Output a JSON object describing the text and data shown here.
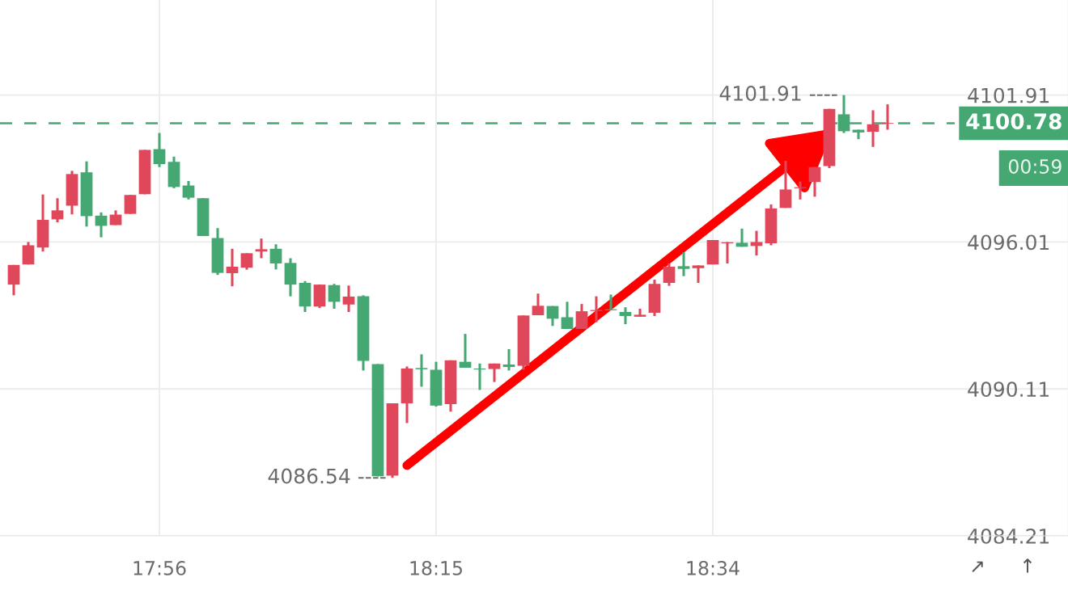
{
  "chart_data": {
    "type": "candlestick",
    "categories": [
      null,
      null,
      null,
      null,
      null,
      null,
      null,
      null,
      null,
      null,
      "17:56",
      null,
      null,
      null,
      null,
      null,
      null,
      null,
      null,
      null,
      null,
      null,
      null,
      null,
      null,
      null,
      null,
      null,
      null,
      "18:15",
      null,
      null,
      null,
      null,
      null,
      null,
      null,
      null,
      null,
      null,
      null,
      null,
      null,
      null,
      null,
      null,
      null,
      null,
      "18:34",
      null,
      null,
      null,
      null,
      null,
      null,
      null,
      null,
      null,
      null,
      null,
      null
    ],
    "ohlc": [
      [
        4094.3,
        4095.09,
        4093.87,
        4095.09
      ],
      [
        4095.11,
        4096.01,
        4095.11,
        4095.88
      ],
      [
        4095.79,
        4097.92,
        4095.63,
        4096.9
      ],
      [
        4096.92,
        4097.77,
        4096.8,
        4097.28
      ],
      [
        4097.47,
        4098.87,
        4097.12,
        4098.74
      ],
      [
        4098.81,
        4099.25,
        4096.63,
        4097.05
      ],
      [
        4097.07,
        4097.2,
        4096.2,
        4096.66
      ],
      [
        4096.69,
        4097.28,
        4096.69,
        4097.11
      ],
      [
        4097.14,
        4097.9,
        4097.14,
        4097.9
      ],
      [
        4097.93,
        4099.71,
        4097.93,
        4099.71
      ],
      [
        4099.74,
        4100.39,
        4099.02,
        4099.14
      ],
      [
        4099.23,
        4099.44,
        4098.17,
        4098.22
      ],
      [
        4098.28,
        4098.46,
        4097.72,
        4097.79
      ],
      [
        4097.77,
        4097.77,
        4096.25,
        4096.25
      ],
      [
        4096.17,
        4096.57,
        4094.69,
        4094.77
      ],
      [
        4094.76,
        4095.74,
        4094.23,
        4095.02
      ],
      [
        4094.98,
        4095.56,
        4094.9,
        4095.56
      ],
      [
        4095.63,
        4096.15,
        4095.36,
        4095.72
      ],
      [
        4095.74,
        4095.92,
        4094.91,
        4095.15
      ],
      [
        4095.17,
        4095.36,
        4093.83,
        4094.3
      ],
      [
        4094.37,
        4094.44,
        4093.2,
        4093.42
      ],
      [
        4093.42,
        4094.3,
        4093.36,
        4094.3
      ],
      [
        4094.28,
        4094.33,
        4093.33,
        4093.61
      ],
      [
        4093.5,
        4094.26,
        4093.2,
        4093.82
      ],
      [
        4093.83,
        4093.87,
        4090.85,
        4091.24
      ],
      [
        4091.11,
        4091.11,
        4086.6,
        4086.6
      ],
      [
        4086.63,
        4089.53,
        4086.54,
        4089.53
      ],
      [
        4089.53,
        4091.01,
        4088.74,
        4090.93
      ],
      [
        4090.95,
        4091.5,
        4090.2,
        4090.9
      ],
      [
        4090.88,
        4091.2,
        4089.4,
        4089.44
      ],
      [
        4089.5,
        4091.26,
        4089.2,
        4091.26
      ],
      [
        4091.2,
        4092.32,
        4090.96,
        4090.96
      ],
      [
        4090.93,
        4091.13,
        4090.07,
        4090.89
      ],
      [
        4090.91,
        4091.13,
        4090.39,
        4091.13
      ],
      [
        4091.09,
        4091.71,
        4090.85,
        4090.99
      ],
      [
        4091.04,
        4093.06,
        4090.88,
        4093.06
      ],
      [
        4093.07,
        4093.94,
        4093.07,
        4093.45
      ],
      [
        4093.44,
        4093.44,
        4092.64,
        4092.93
      ],
      [
        4092.99,
        4093.61,
        4092.52,
        4092.52
      ],
      [
        4092.52,
        4093.52,
        4092.52,
        4093.23
      ],
      [
        4093.24,
        4093.83,
        4092.79,
        4093.28
      ],
      [
        4093.31,
        4093.9,
        4093.27,
        4093.27
      ],
      [
        4093.2,
        4093.39,
        4092.71,
        4093.04
      ],
      [
        4093.01,
        4093.33,
        4093.01,
        4093.09
      ],
      [
        4093.17,
        4094.5,
        4093.04,
        4094.33
      ],
      [
        4094.37,
        4095.15,
        4094.25,
        4095.02
      ],
      [
        4095.04,
        4095.6,
        4094.64,
        4094.93
      ],
      [
        4094.96,
        4095.07,
        4094.37,
        4095.07
      ],
      [
        4095.11,
        4096.09,
        4095.11,
        4096.09
      ],
      [
        4095.96,
        4096.01,
        4095.15,
        4096.0
      ],
      [
        4095.98,
        4096.55,
        4095.82,
        4095.82
      ],
      [
        4095.85,
        4096.46,
        4095.47,
        4096.01
      ],
      [
        4095.96,
        4097.52,
        4095.88,
        4097.36
      ],
      [
        4097.38,
        4099.27,
        4097.38,
        4098.12
      ],
      [
        4098.17,
        4098.44,
        4097.72,
        4098.21
      ],
      [
        4098.42,
        4099.02,
        4097.83,
        4099.02
      ],
      [
        4099.06,
        4101.36,
        4098.98,
        4101.36
      ],
      [
        4101.14,
        4101.91,
        4100.39,
        4100.46
      ],
      [
        4100.52,
        4100.52,
        4100.14,
        4100.41
      ],
      [
        4100.44,
        4101.3,
        4099.83,
        4100.74
      ],
      [
        4100.76,
        4101.54,
        4100.52,
        4100.78
      ]
    ],
    "colors": [
      "#e0475b",
      "#e0475b",
      "#e0475b",
      "#e0475b",
      "#e0475b",
      "#45a873",
      "#45a873",
      "#e0475b",
      "#e0475b",
      "#e0475b",
      "#45a873",
      "#45a873",
      "#45a873",
      "#45a873",
      "#45a873",
      "#e0475b",
      "#e0475b",
      "#e0475b",
      "#45a873",
      "#45a873",
      "#45a873",
      "#e0475b",
      "#45a873",
      "#e0475b",
      "#45a873",
      "#45a873",
      "#e0475b",
      "#e0475b",
      "#45a873",
      "#45a873",
      "#e0475b",
      "#45a873",
      "#45a873",
      "#e0475b",
      "#45a873",
      "#e0475b",
      "#e0475b",
      "#45a873",
      "#45a873",
      "#e0475b",
      "#e0475b",
      "#45a873",
      "#45a873",
      "#e0475b",
      "#e0475b",
      "#e0475b",
      "#45a873",
      "#e0475b",
      "#e0475b",
      "#e0475b",
      "#45a873",
      "#e0475b",
      "#e0475b",
      "#e0475b",
      "#e0475b",
      "#e0475b",
      "#e0475b",
      "#45a873",
      "#45a873",
      "#e0475b",
      "#e0475b"
    ],
    "ylim": [
      4084.21,
      4105.73
    ],
    "yticks": [
      4084.21,
      4090.11,
      4096.01,
      4101.91
    ],
    "grid": true,
    "ref_lines": [
      {
        "axis": "y",
        "value": 4100.78,
        "label": "4100.78",
        "color": "#45a873",
        "line_style": "dashed"
      }
    ],
    "annotations": [
      "4101.91 ----",
      "4086.54 ----",
      "00:59",
      "↗",
      "↑"
    ]
  }
}
